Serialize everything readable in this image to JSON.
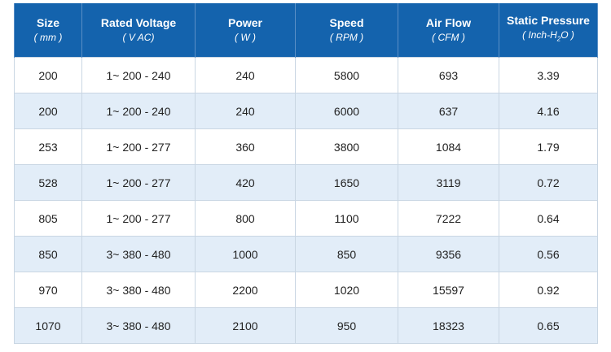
{
  "table": {
    "columns": [
      {
        "title": "Size",
        "unit": "( mm )"
      },
      {
        "title": "Rated Voltage",
        "unit": "( V AC)"
      },
      {
        "title": "Power",
        "unit": "( W )"
      },
      {
        "title": "Speed",
        "unit": "( RPM )"
      },
      {
        "title": "Air Flow",
        "unit": "( CFM )"
      },
      {
        "title": "Static Pressure",
        "unit": "( Inch-H",
        "unit_sub": "2",
        "unit_end": "O )"
      }
    ],
    "rows": [
      [
        200,
        "1~ 200 - 240",
        240,
        5800,
        693,
        3.39
      ],
      [
        200,
        "1~ 200 - 240",
        240,
        6000,
        637,
        4.16
      ],
      [
        253,
        "1~ 200 - 277",
        360,
        3800,
        1084,
        1.79
      ],
      [
        528,
        "1~ 200 - 277",
        420,
        1650,
        3119,
        0.72
      ],
      [
        805,
        "1~ 200 - 277",
        800,
        1100,
        7222,
        0.64
      ],
      [
        850,
        "3~ 380 - 480",
        1000,
        850,
        9356,
        0.56
      ],
      [
        970,
        "3~ 380 - 480",
        2200,
        1020,
        15597,
        0.92
      ],
      [
        1070,
        "3~ 380 - 480",
        2100,
        950,
        18323,
        0.65
      ]
    ]
  }
}
